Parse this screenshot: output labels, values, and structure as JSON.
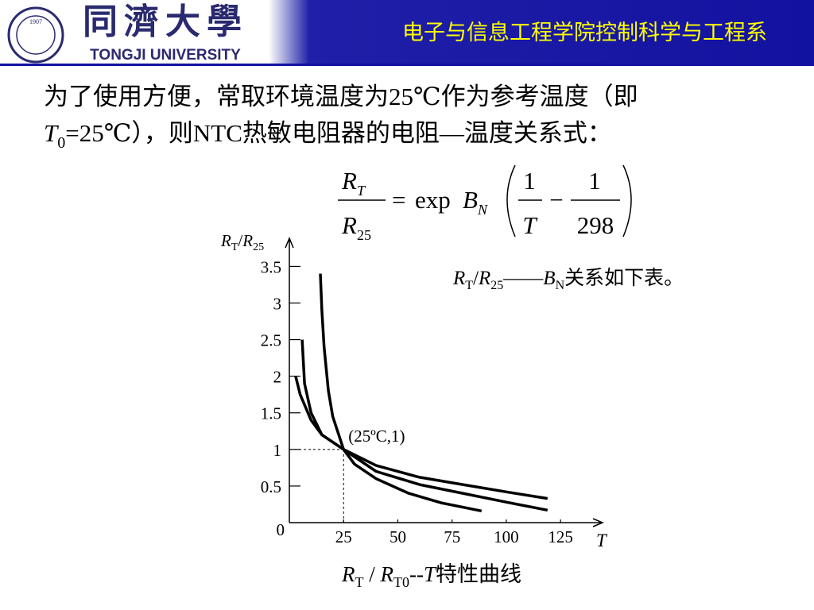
{
  "header": {
    "logo_year": "1907",
    "logo_name": "同濟大學",
    "logo_english": "TONGJI UNIVERSITY",
    "title": "电子与信息工程学院控制科学与工程系"
  },
  "body": {
    "line1": "为了使用方便，常取环境温度为25℃作为参考温度（即",
    "line2_t": "T",
    "line2_sub": "0",
    "line2_rest": "=25℃），则NTC热敏电阻器的电阻—温度关系式："
  },
  "formula": {
    "num_r": "R",
    "num_sub": "T",
    "den_r": "R",
    "den_sub": "25",
    "eq": "=",
    "exp": "exp",
    "b": "B",
    "b_sub": "N",
    "f1_num": "1",
    "f1_den": "T",
    "minus": "−",
    "f2_num": "1",
    "f2_den": "298"
  },
  "note": {
    "r1": "R",
    "s1": "T",
    "slash": "/",
    "r2": "R",
    "s2": "25",
    "dash": "——",
    "b": "B",
    "bs": "N",
    "rest": "关系如下表。"
  },
  "caption": {
    "r1": "R",
    "s1": "T",
    "slash": " / ",
    "r2": "R",
    "s2": "T0",
    "rest1": "--",
    "t": "T",
    "rest2": "特性曲线"
  },
  "chart_data": {
    "type": "line",
    "y_label": {
      "r1": "R",
      "s1": "T",
      "slash": "/",
      "r2": "R",
      "s2": "25"
    },
    "x_label": "T",
    "xlim": [
      0,
      144
    ],
    "ylim": [
      0,
      3.83
    ],
    "xticks": [
      25,
      50,
      75,
      100,
      125
    ],
    "yticks": [
      0,
      0.5,
      1,
      1.5,
      2,
      2.5,
      3,
      3.5
    ],
    "color": "#000000",
    "annotation": {
      "text": "(25ºC,1)",
      "x": 25,
      "y": 1
    },
    "series": [
      {
        "x": [
          14.3,
          15,
          16,
          18,
          20,
          25,
          30,
          40,
          55,
          70,
          88.6
        ],
        "values": [
          3.4,
          2.9,
          2.4,
          1.8,
          1.45,
          1,
          0.8,
          0.6,
          0.4,
          0.27,
          0.16
        ]
      },
      {
        "x": [
          5.9,
          7,
          10,
          15,
          25,
          40,
          60,
          80,
          100,
          119
        ],
        "values": [
          2.5,
          1.9,
          1.5,
          1.2,
          1,
          0.7,
          0.52,
          0.4,
          0.28,
          0.17
        ]
      },
      {
        "x": [
          2.9,
          5,
          10,
          15,
          25,
          40,
          60,
          80,
          100,
          119
        ],
        "values": [
          2.0,
          1.75,
          1.4,
          1.2,
          1,
          0.78,
          0.62,
          0.52,
          0.42,
          0.33
        ]
      }
    ]
  }
}
